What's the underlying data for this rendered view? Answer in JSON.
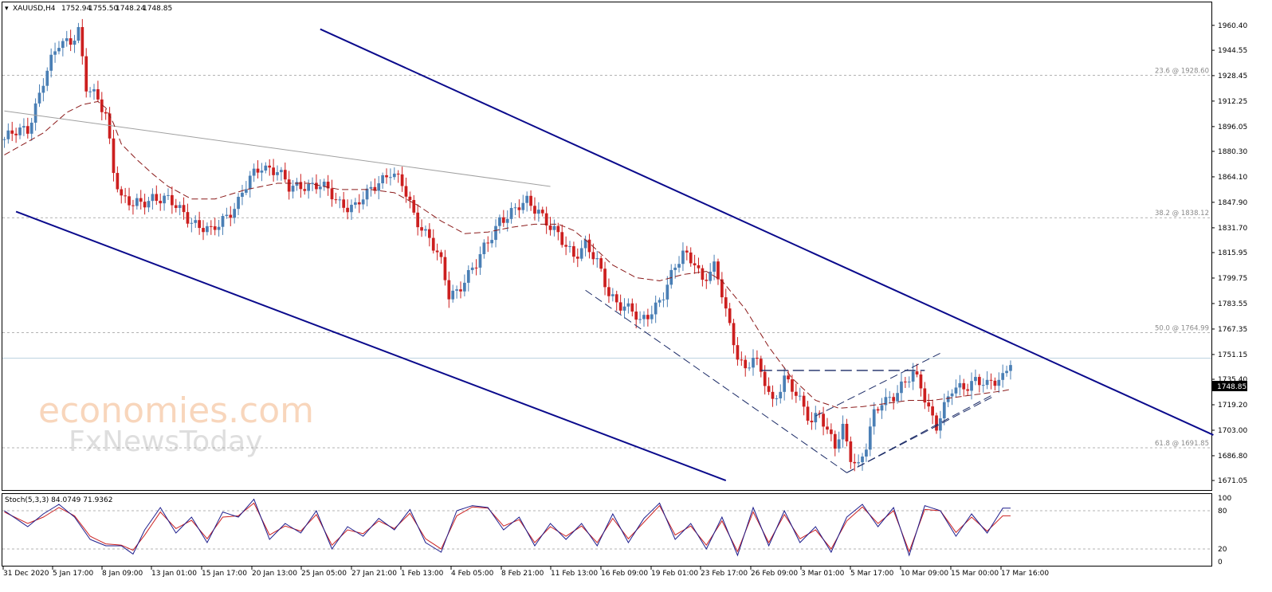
{
  "header": {
    "symbol": "XAUUSD,H4",
    "open": "1752.94",
    "high": "1755.50",
    "low": "1748.24",
    "close": "1748.85"
  },
  "watermark": {
    "line1": "economies.com",
    "line2": "FxNewsToday"
  },
  "current_price_label": "1748.85",
  "stoch_header": "Stoch(5,3,3) 84.0749 71.9362",
  "colors": {
    "bull": "#4a7fb5",
    "bear": "#cc1f1f",
    "channel": "#0a0a8c",
    "ma": "#8b1a1a",
    "stoch_main": "#1d1d8c",
    "stoch_signal": "#cc2222"
  },
  "chart_data": {
    "type": "candlestick",
    "title": "XAUUSD,H4",
    "ylim": [
      1665,
      1975
    ],
    "y_ticks": [
      "1960.40",
      "1944.55",
      "1928.45",
      "1912.25",
      "1896.05",
      "1880.30",
      "1864.10",
      "1847.90",
      "1831.70",
      "1815.95",
      "1799.75",
      "1783.55",
      "1767.35",
      "1751.15",
      "1735.40",
      "1719.20",
      "1703.00",
      "1686.80",
      "1671.05"
    ],
    "x_ticks": [
      "31 Dec 2020",
      "5 Jan 17:00",
      "8 Jan 09:00",
      "13 Jan 01:00",
      "15 Jan 17:00",
      "20 Jan 13:00",
      "25 Jan 05:00",
      "27 Jan 21:00",
      "1 Feb 13:00",
      "4 Feb 05:00",
      "8 Feb 21:00",
      "11 Feb 13:00",
      "16 Feb 09:00",
      "19 Feb 01:00",
      "23 Feb 17:00",
      "26 Feb 09:00",
      "3 Mar 01:00",
      "5 Mar 17:00",
      "10 Mar 09:00",
      "15 Mar 00:00",
      "17 Mar 16:00"
    ],
    "fib_levels": [
      {
        "label": "23.6 @ 1928.60",
        "price": 1928.6
      },
      {
        "label": "38.2 @ 1838.12",
        "price": 1838.12
      },
      {
        "label": "50.0 @ 1764.99",
        "price": 1764.99
      },
      {
        "label": "61.8 @ 1691.85",
        "price": 1691.85
      }
    ],
    "close_path": [
      [
        0,
        1888
      ],
      [
        6,
        1895
      ],
      [
        10,
        1925
      ],
      [
        14,
        1948
      ],
      [
        17,
        1952
      ],
      [
        19,
        1958
      ],
      [
        21,
        1920
      ],
      [
        24,
        1912
      ],
      [
        26,
        1905
      ],
      [
        28,
        1870
      ],
      [
        30,
        1850
      ],
      [
        33,
        1845
      ],
      [
        38,
        1852
      ],
      [
        42,
        1848
      ],
      [
        46,
        1842
      ],
      [
        50,
        1832
      ],
      [
        53,
        1828
      ],
      [
        56,
        1838
      ],
      [
        60,
        1848
      ],
      [
        63,
        1862
      ],
      [
        66,
        1872
      ],
      [
        70,
        1868
      ],
      [
        73,
        1856
      ],
      [
        77,
        1860
      ],
      [
        81,
        1858
      ],
      [
        86,
        1848
      ],
      [
        90,
        1845
      ],
      [
        93,
        1852
      ],
      [
        96,
        1862
      ],
      [
        99,
        1868
      ],
      [
        102,
        1858
      ],
      [
        105,
        1840
      ],
      [
        109,
        1826
      ],
      [
        112,
        1808
      ],
      [
        114,
        1788
      ],
      [
        116,
        1792
      ],
      [
        118,
        1800
      ],
      [
        121,
        1808
      ],
      [
        124,
        1822
      ],
      [
        127,
        1838
      ],
      [
        131,
        1842
      ],
      [
        134,
        1848
      ],
      [
        137,
        1844
      ],
      [
        140,
        1832
      ],
      [
        143,
        1822
      ],
      [
        146,
        1815
      ],
      [
        149,
        1822
      ],
      [
        152,
        1808
      ],
      [
        155,
        1790
      ],
      [
        158,
        1784
      ],
      [
        161,
        1778
      ],
      [
        163,
        1770
      ],
      [
        166,
        1780
      ],
      [
        169,
        1790
      ],
      [
        172,
        1805
      ],
      [
        174,
        1815
      ],
      [
        177,
        1812
      ],
      [
        179,
        1798
      ],
      [
        182,
        1805
      ],
      [
        184,
        1790
      ],
      [
        186,
        1770
      ],
      [
        188,
        1752
      ],
      [
        190,
        1740
      ],
      [
        192,
        1748
      ],
      [
        195,
        1735
      ],
      [
        197,
        1722
      ],
      [
        200,
        1735
      ],
      [
        202,
        1728
      ],
      [
        205,
        1718
      ],
      [
        207,
        1710
      ],
      [
        209,
        1715
      ],
      [
        211,
        1700
      ],
      [
        213,
        1692
      ],
      [
        215,
        1705
      ],
      [
        217,
        1688
      ],
      [
        219,
        1680
      ],
      [
        221,
        1692
      ],
      [
        223,
        1712
      ],
      [
        225,
        1722
      ],
      [
        228,
        1726
      ],
      [
        231,
        1732
      ],
      [
        233,
        1738
      ],
      [
        235,
        1732
      ],
      [
        237,
        1718
      ],
      [
        239,
        1706
      ],
      [
        241,
        1716
      ],
      [
        243,
        1728
      ],
      [
        246,
        1732
      ],
      [
        249,
        1735
      ],
      [
        252,
        1730
      ],
      [
        254,
        1734
      ],
      [
        256,
        1738
      ],
      [
        258,
        1749
      ]
    ],
    "ma_path": [
      [
        0,
        1878
      ],
      [
        10,
        1892
      ],
      [
        16,
        1905
      ],
      [
        20,
        1910
      ],
      [
        24,
        1912
      ],
      [
        26,
        1908
      ],
      [
        28,
        1898
      ],
      [
        30,
        1885
      ],
      [
        34,
        1875
      ],
      [
        38,
        1866
      ],
      [
        42,
        1858
      ],
      [
        48,
        1850
      ],
      [
        54,
        1850
      ],
      [
        62,
        1856
      ],
      [
        70,
        1860
      ],
      [
        78,
        1860
      ],
      [
        86,
        1856
      ],
      [
        94,
        1856
      ],
      [
        100,
        1854
      ],
      [
        106,
        1846
      ],
      [
        112,
        1836
      ],
      [
        118,
        1828
      ],
      [
        124,
        1829
      ],
      [
        130,
        1832
      ],
      [
        136,
        1834
      ],
      [
        142,
        1834
      ],
      [
        146,
        1830
      ],
      [
        150,
        1822
      ],
      [
        156,
        1808
      ],
      [
        162,
        1800
      ],
      [
        168,
        1798
      ],
      [
        174,
        1802
      ],
      [
        180,
        1804
      ],
      [
        184,
        1798
      ],
      [
        190,
        1780
      ],
      [
        196,
        1756
      ],
      [
        202,
        1736
      ],
      [
        208,
        1722
      ],
      [
        214,
        1717
      ],
      [
        220,
        1718
      ],
      [
        226,
        1720
      ],
      [
        232,
        1722
      ],
      [
        238,
        1722
      ],
      [
        244,
        1724
      ],
      [
        250,
        1726
      ],
      [
        256,
        1728
      ],
      [
        258,
        1729
      ]
    ],
    "channel_upper": [
      [
        81,
        1958
      ],
      [
        310,
        1700
      ]
    ],
    "channel_lower": [
      [
        3,
        1842
      ],
      [
        185,
        1671.05
      ]
    ],
    "trendline_grey": [
      [
        0,
        1906
      ],
      [
        140,
        1858
      ]
    ],
    "wedge_lower_dashed": [
      [
        149,
        1792
      ],
      [
        216,
        1676
      ],
      [
        253,
        1725
      ]
    ],
    "wedge_upper_dashed": [
      [
        194,
        1741
      ],
      [
        236,
        1741
      ]
    ],
    "rising_channel_dashed": [
      [
        [
          208,
          1712
        ],
        [
          240,
          1752
        ]
      ],
      [
        [
          216,
          1676
        ],
        [
          254,
          1725
        ]
      ]
    ],
    "stochastic": {
      "ylim": [
        0,
        100
      ],
      "levels": [
        80,
        20
      ],
      "y_ticks": [
        "100",
        "80",
        "20",
        "0"
      ],
      "main": [
        [
          0,
          80
        ],
        [
          6,
          55
        ],
        [
          10,
          75
        ],
        [
          14,
          90
        ],
        [
          18,
          70
        ],
        [
          22,
          35
        ],
        [
          26,
          25
        ],
        [
          30,
          25
        ],
        [
          33,
          12
        ],
        [
          36,
          50
        ],
        [
          40,
          85
        ],
        [
          44,
          45
        ],
        [
          48,
          70
        ],
        [
          52,
          30
        ],
        [
          56,
          78
        ],
        [
          60,
          70
        ],
        [
          64,
          98
        ],
        [
          68,
          35
        ],
        [
          72,
          60
        ],
        [
          76,
          45
        ],
        [
          80,
          80
        ],
        [
          84,
          20
        ],
        [
          88,
          55
        ],
        [
          92,
          40
        ],
        [
          96,
          68
        ],
        [
          100,
          50
        ],
        [
          104,
          82
        ],
        [
          108,
          30
        ],
        [
          112,
          15
        ],
        [
          116,
          80
        ],
        [
          120,
          88
        ],
        [
          124,
          85
        ],
        [
          128,
          50
        ],
        [
          132,
          70
        ],
        [
          136,
          25
        ],
        [
          140,
          60
        ],
        [
          144,
          35
        ],
        [
          148,
          60
        ],
        [
          152,
          25
        ],
        [
          156,
          75
        ],
        [
          160,
          30
        ],
        [
          164,
          68
        ],
        [
          168,
          92
        ],
        [
          172,
          35
        ],
        [
          176,
          60
        ],
        [
          180,
          20
        ],
        [
          184,
          70
        ],
        [
          188,
          10
        ],
        [
          192,
          85
        ],
        [
          196,
          25
        ],
        [
          200,
          80
        ],
        [
          204,
          30
        ],
        [
          208,
          55
        ],
        [
          212,
          15
        ],
        [
          216,
          70
        ],
        [
          220,
          90
        ],
        [
          224,
          55
        ],
        [
          228,
          85
        ],
        [
          232,
          10
        ],
        [
          236,
          88
        ],
        [
          240,
          80
        ],
        [
          244,
          40
        ],
        [
          248,
          75
        ],
        [
          252,
          45
        ],
        [
          256,
          84
        ]
      ],
      "signal": [
        [
          0,
          78
        ],
        [
          6,
          60
        ],
        [
          10,
          70
        ],
        [
          14,
          85
        ],
        [
          18,
          72
        ],
        [
          22,
          40
        ],
        [
          26,
          28
        ],
        [
          30,
          26
        ],
        [
          33,
          18
        ],
        [
          36,
          42
        ],
        [
          40,
          78
        ],
        [
          44,
          52
        ],
        [
          48,
          65
        ],
        [
          52,
          36
        ],
        [
          56,
          70
        ],
        [
          60,
          72
        ],
        [
          64,
          92
        ],
        [
          68,
          42
        ],
        [
          72,
          56
        ],
        [
          76,
          48
        ],
        [
          80,
          74
        ],
        [
          84,
          26
        ],
        [
          88,
          50
        ],
        [
          92,
          44
        ],
        [
          96,
          64
        ],
        [
          100,
          52
        ],
        [
          104,
          76
        ],
        [
          108,
          36
        ],
        [
          112,
          20
        ],
        [
          116,
          72
        ],
        [
          120,
          86
        ],
        [
          124,
          84
        ],
        [
          128,
          56
        ],
        [
          132,
          66
        ],
        [
          136,
          30
        ],
        [
          140,
          55
        ],
        [
          144,
          40
        ],
        [
          148,
          56
        ],
        [
          152,
          30
        ],
        [
          156,
          68
        ],
        [
          160,
          36
        ],
        [
          164,
          62
        ],
        [
          168,
          88
        ],
        [
          172,
          42
        ],
        [
          176,
          56
        ],
        [
          180,
          26
        ],
        [
          184,
          64
        ],
        [
          188,
          16
        ],
        [
          192,
          78
        ],
        [
          196,
          30
        ],
        [
          200,
          74
        ],
        [
          204,
          36
        ],
        [
          208,
          50
        ],
        [
          212,
          20
        ],
        [
          216,
          64
        ],
        [
          220,
          86
        ],
        [
          224,
          60
        ],
        [
          228,
          80
        ],
        [
          232,
          16
        ],
        [
          236,
          82
        ],
        [
          240,
          80
        ],
        [
          244,
          46
        ],
        [
          248,
          70
        ],
        [
          252,
          48
        ],
        [
          256,
          72
        ]
      ]
    }
  }
}
